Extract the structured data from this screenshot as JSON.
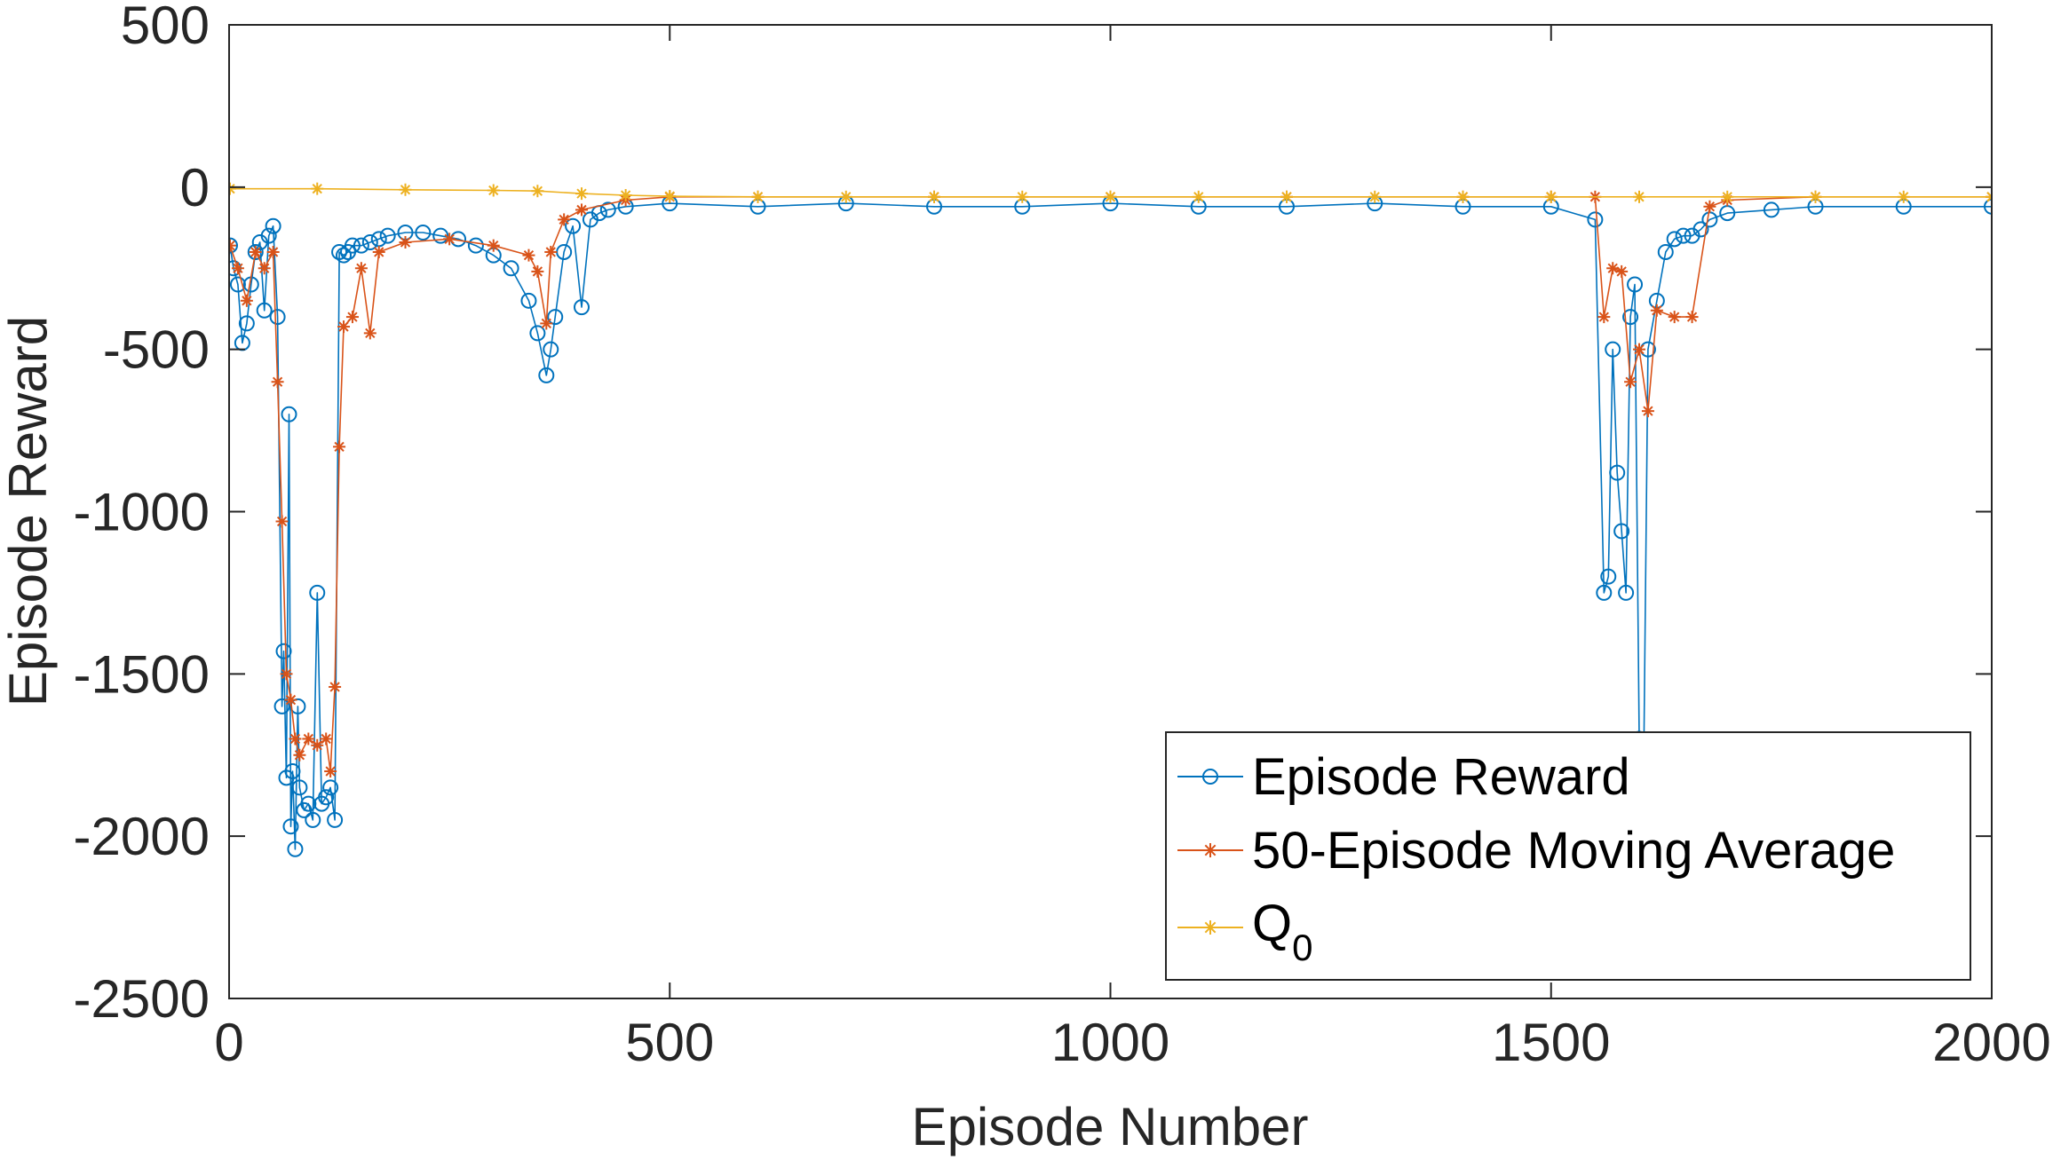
{
  "chart_data": {
    "type": "line",
    "xlabel": "Episode Number",
    "ylabel": "Episode Reward",
    "xlim": [
      0,
      2000
    ],
    "ylim": [
      -2500,
      500
    ],
    "xticks": [
      0,
      500,
      1000,
      1500,
      2000
    ],
    "xtick_labels": [
      "0",
      "500",
      "1000",
      "1500",
      "2000"
    ],
    "yticks": [
      -2500,
      -2000,
      -1500,
      -1000,
      -500,
      0,
      500
    ],
    "ytick_labels": [
      "-2500",
      "-2000",
      "-1500",
      "-1000",
      "-500",
      "0",
      "500"
    ],
    "grid": false,
    "legend_position": "bottom-right",
    "legend": {
      "reward_label": "Episode Reward",
      "avg_label": "50-Episode Moving Average",
      "q0_label_main": "Q",
      "q0_label_sub": "0"
    },
    "series": [
      {
        "name": "Episode Reward",
        "color": "#0072BD",
        "marker": "circle",
        "x": [
          1,
          5,
          10,
          15,
          20,
          25,
          30,
          35,
          40,
          45,
          50,
          55,
          60,
          62,
          65,
          68,
          70,
          72,
          75,
          78,
          80,
          85,
          90,
          95,
          100,
          105,
          110,
          115,
          120,
          125,
          130,
          135,
          140,
          150,
          160,
          170,
          180,
          200,
          220,
          240,
          260,
          280,
          300,
          320,
          340,
          350,
          360,
          365,
          370,
          380,
          390,
          400,
          410,
          420,
          430,
          450,
          500,
          600,
          700,
          800,
          900,
          1000,
          1100,
          1200,
          1300,
          1400,
          1500,
          1550,
          1560,
          1565,
          1570,
          1575,
          1580,
          1585,
          1590,
          1595,
          1600,
          1605,
          1610,
          1620,
          1630,
          1640,
          1650,
          1660,
          1670,
          1680,
          1700,
          1750,
          1800,
          1900,
          2000
        ],
        "values": [
          -180,
          -250,
          -300,
          -480,
          -420,
          -300,
          -200,
          -170,
          -380,
          -150,
          -120,
          -400,
          -1600,
          -1430,
          -1820,
          -700,
          -1970,
          -1800,
          -2040,
          -1600,
          -1850,
          -1920,
          -1900,
          -1950,
          -1250,
          -1900,
          -1880,
          -1850,
          -1950,
          -200,
          -210,
          -200,
          -180,
          -180,
          -170,
          -160,
          -150,
          -140,
          -140,
          -150,
          -160,
          -180,
          -210,
          -250,
          -350,
          -450,
          -580,
          -500,
          -400,
          -200,
          -120,
          -370,
          -100,
          -80,
          -70,
          -60,
          -50,
          -60,
          -50,
          -60,
          -60,
          -50,
          -60,
          -60,
          -50,
          -60,
          -60,
          -100,
          -1250,
          -1200,
          -500,
          -880,
          -1060,
          -1250,
          -400,
          -300,
          -1700,
          -1800,
          -500,
          -350,
          -200,
          -160,
          -150,
          -150,
          -130,
          -100,
          -80,
          -70,
          -60,
          -60,
          -60
        ]
      },
      {
        "name": "50-Episode Moving Average",
        "color": "#D95319",
        "marker": "asterisk",
        "x": [
          1,
          10,
          20,
          30,
          40,
          50,
          55,
          60,
          65,
          70,
          75,
          80,
          90,
          100,
          110,
          115,
          120,
          125,
          130,
          140,
          150,
          160,
          170,
          200,
          250,
          300,
          340,
          350,
          360,
          365,
          380,
          400,
          450,
          500,
          600,
          800,
          1000,
          1200,
          1400,
          1500,
          1550,
          1560,
          1570,
          1580,
          1590,
          1600,
          1610,
          1620,
          1640,
          1660,
          1680,
          1700,
          1800,
          2000
        ],
        "values": [
          -180,
          -250,
          -350,
          -200,
          -250,
          -200,
          -600,
          -1030,
          -1500,
          -1580,
          -1700,
          -1750,
          -1700,
          -1720,
          -1700,
          -1800,
          -1540,
          -800,
          -430,
          -400,
          -250,
          -450,
          -200,
          -170,
          -160,
          -180,
          -210,
          -260,
          -420,
          -200,
          -100,
          -70,
          -40,
          -30,
          -30,
          -30,
          -30,
          -30,
          -30,
          -30,
          -30,
          -400,
          -250,
          -260,
          -600,
          -500,
          -690,
          -380,
          -400,
          -400,
          -60,
          -40,
          -30,
          -30
        ]
      },
      {
        "name": "Q_0",
        "color": "#EDB120",
        "marker": "asterisk",
        "x": [
          1,
          100,
          200,
          300,
          350,
          400,
          450,
          500,
          600,
          700,
          800,
          900,
          1000,
          1100,
          1200,
          1300,
          1400,
          1500,
          1600,
          1700,
          1800,
          1900,
          2000
        ],
        "values": [
          -5,
          -5,
          -8,
          -10,
          -12,
          -20,
          -25,
          -28,
          -30,
          -30,
          -30,
          -30,
          -30,
          -30,
          -30,
          -30,
          -30,
          -30,
          -30,
          -30,
          -30,
          -30,
          -30
        ]
      }
    ]
  }
}
